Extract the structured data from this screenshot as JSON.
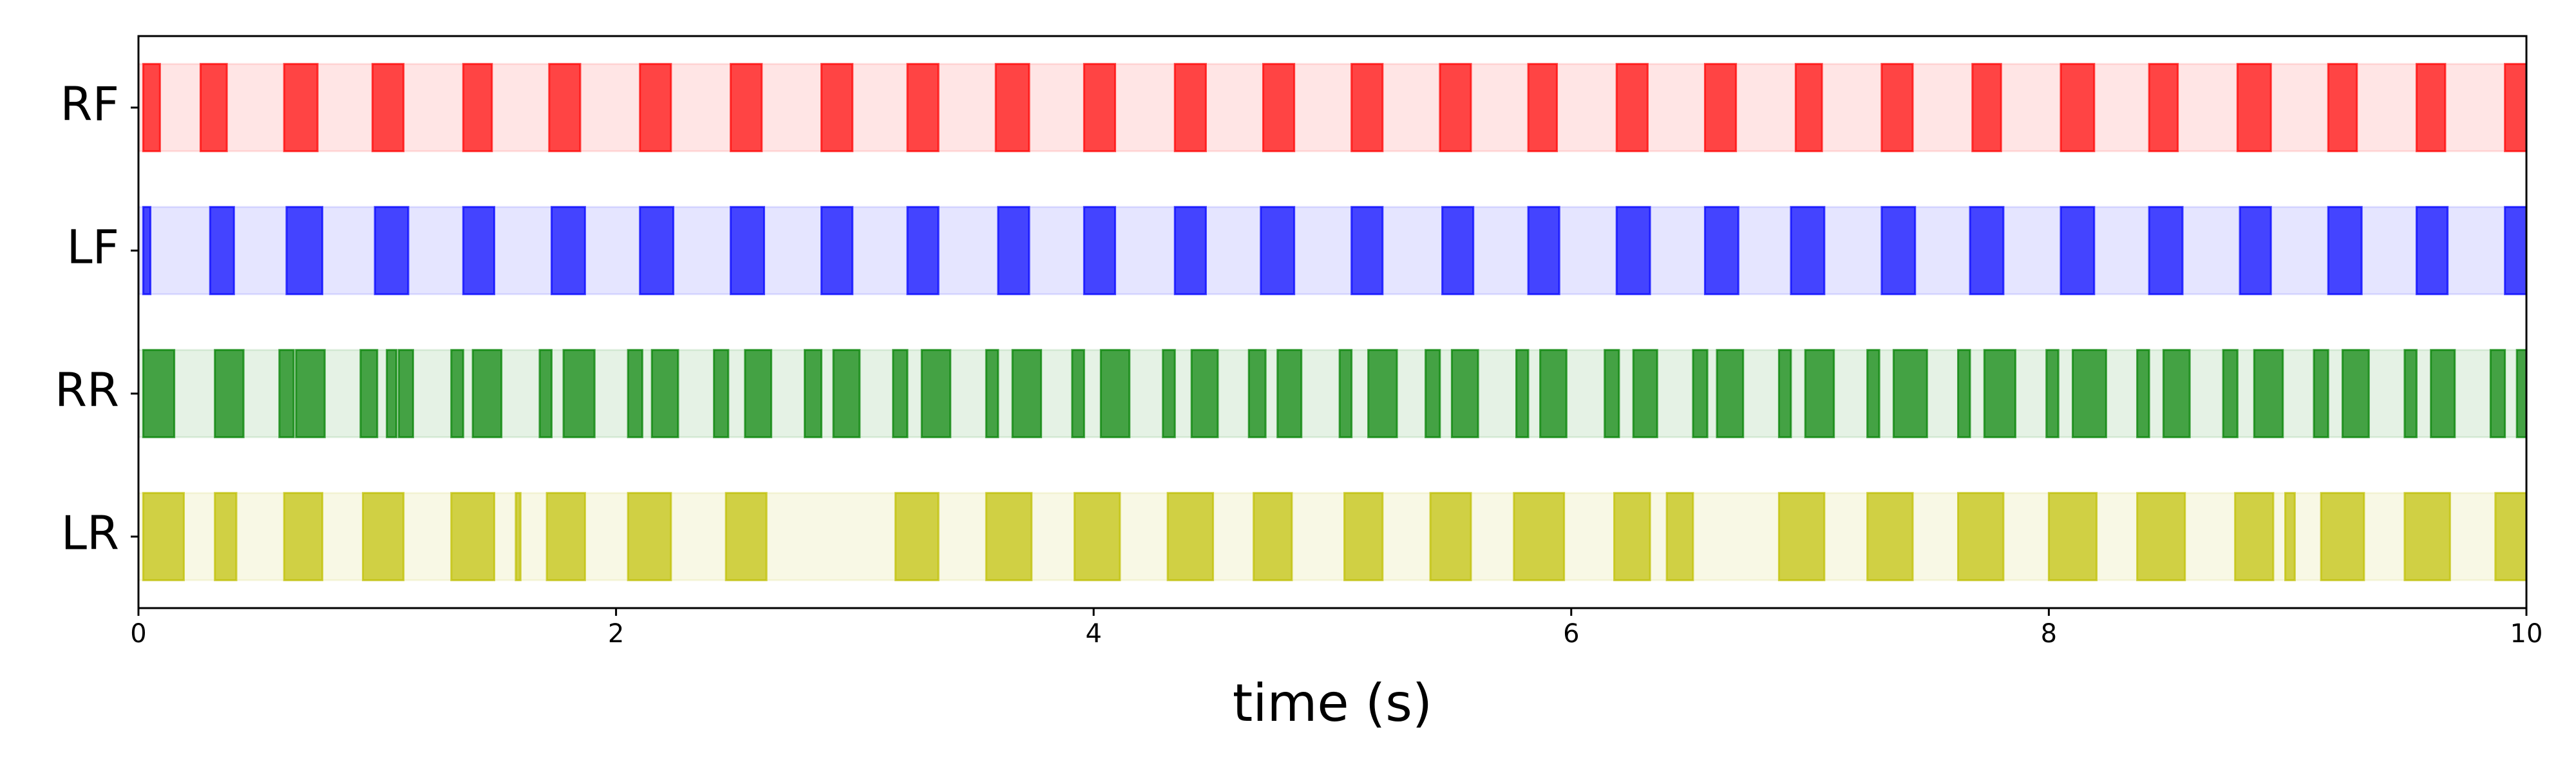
{
  "chart_data": {
    "type": "broken_barh",
    "xlabel": "time (s)",
    "xlim": [
      0,
      10
    ],
    "xticks": [
      0,
      2,
      4,
      6,
      8,
      10
    ],
    "series": [
      {
        "name": "RF",
        "color": "#ff0000",
        "intervals": [
          [
            0.02,
            0.09
          ],
          [
            0.26,
            0.37
          ],
          [
            0.61,
            0.75
          ],
          [
            0.98,
            1.11
          ],
          [
            1.36,
            1.48
          ],
          [
            1.72,
            1.85
          ],
          [
            2.1,
            2.23
          ],
          [
            2.48,
            2.61
          ],
          [
            2.86,
            2.99
          ],
          [
            3.22,
            3.35
          ],
          [
            3.59,
            3.73
          ],
          [
            3.96,
            4.09
          ],
          [
            4.34,
            4.47
          ],
          [
            4.71,
            4.84
          ],
          [
            5.08,
            5.21
          ],
          [
            5.45,
            5.58
          ],
          [
            5.82,
            5.94
          ],
          [
            6.19,
            6.32
          ],
          [
            6.56,
            6.69
          ],
          [
            6.94,
            7.05
          ],
          [
            7.3,
            7.43
          ],
          [
            7.68,
            7.8
          ],
          [
            8.05,
            8.19
          ],
          [
            8.42,
            8.54
          ],
          [
            8.79,
            8.93
          ],
          [
            9.17,
            9.29
          ],
          [
            9.54,
            9.66
          ],
          [
            9.91,
            10.0
          ]
        ]
      },
      {
        "name": "LF",
        "color": "#0000ff",
        "intervals": [
          [
            0.02,
            0.05
          ],
          [
            0.3,
            0.4
          ],
          [
            0.62,
            0.77
          ],
          [
            0.99,
            1.13
          ],
          [
            1.36,
            1.49
          ],
          [
            1.73,
            1.87
          ],
          [
            2.1,
            2.24
          ],
          [
            2.48,
            2.62
          ],
          [
            2.86,
            2.99
          ],
          [
            3.22,
            3.35
          ],
          [
            3.6,
            3.73
          ],
          [
            3.96,
            4.09
          ],
          [
            4.34,
            4.47
          ],
          [
            4.7,
            4.84
          ],
          [
            5.08,
            5.21
          ],
          [
            5.46,
            5.59
          ],
          [
            5.82,
            5.95
          ],
          [
            6.19,
            6.33
          ],
          [
            6.56,
            6.7
          ],
          [
            6.92,
            7.06
          ],
          [
            7.3,
            7.44
          ],
          [
            7.67,
            7.81
          ],
          [
            8.05,
            8.19
          ],
          [
            8.42,
            8.56
          ],
          [
            8.8,
            8.93
          ],
          [
            9.17,
            9.31
          ],
          [
            9.54,
            9.67
          ],
          [
            9.91,
            10.0
          ]
        ]
      },
      {
        "name": "RR",
        "color": "#008000",
        "intervals": [
          [
            0.02,
            0.15
          ],
          [
            0.32,
            0.44
          ],
          [
            0.59,
            0.65
          ],
          [
            0.66,
            0.78
          ],
          [
            0.93,
            1.0
          ],
          [
            1.04,
            1.08
          ],
          [
            1.09,
            1.15
          ],
          [
            1.31,
            1.36
          ],
          [
            1.4,
            1.52
          ],
          [
            1.68,
            1.73
          ],
          [
            1.78,
            1.91
          ],
          [
            2.05,
            2.11
          ],
          [
            2.15,
            2.26
          ],
          [
            2.41,
            2.47
          ],
          [
            2.54,
            2.65
          ],
          [
            2.79,
            2.86
          ],
          [
            2.91,
            3.02
          ],
          [
            3.16,
            3.22
          ],
          [
            3.28,
            3.4
          ],
          [
            3.55,
            3.6
          ],
          [
            3.66,
            3.78
          ],
          [
            3.91,
            3.96
          ],
          [
            4.03,
            4.15
          ],
          [
            4.29,
            4.34
          ],
          [
            4.41,
            4.52
          ],
          [
            4.65,
            4.72
          ],
          [
            4.77,
            4.87
          ],
          [
            5.03,
            5.08
          ],
          [
            5.15,
            5.27
          ],
          [
            5.39,
            5.45
          ],
          [
            5.5,
            5.61
          ],
          [
            5.77,
            5.82
          ],
          [
            5.87,
            5.98
          ],
          [
            6.14,
            6.2
          ],
          [
            6.26,
            6.36
          ],
          [
            6.51,
            6.57
          ],
          [
            6.61,
            6.72
          ],
          [
            6.87,
            6.92
          ],
          [
            6.98,
            7.1
          ],
          [
            7.24,
            7.29
          ],
          [
            7.35,
            7.49
          ],
          [
            7.62,
            7.67
          ],
          [
            7.73,
            7.86
          ],
          [
            7.99,
            8.04
          ],
          [
            8.1,
            8.24
          ],
          [
            8.37,
            8.42
          ],
          [
            8.48,
            8.59
          ],
          [
            8.73,
            8.79
          ],
          [
            8.86,
            8.98
          ],
          [
            9.11,
            9.17
          ],
          [
            9.23,
            9.34
          ],
          [
            9.49,
            9.54
          ],
          [
            9.6,
            9.7
          ],
          [
            9.85,
            9.91
          ],
          [
            9.96,
            10.0
          ]
        ]
      },
      {
        "name": "LR",
        "color": "#bfbf00",
        "intervals": [
          [
            0.02,
            0.19
          ],
          [
            0.32,
            0.41
          ],
          [
            0.61,
            0.77
          ],
          [
            0.94,
            1.11
          ],
          [
            1.31,
            1.49
          ],
          [
            1.58,
            1.6
          ],
          [
            1.71,
            1.87
          ],
          [
            2.05,
            2.23
          ],
          [
            2.46,
            2.63
          ],
          [
            3.17,
            3.35
          ],
          [
            3.55,
            3.74
          ],
          [
            3.92,
            4.11
          ],
          [
            4.31,
            4.5
          ],
          [
            4.67,
            4.83
          ],
          [
            5.05,
            5.21
          ],
          [
            5.41,
            5.58
          ],
          [
            5.76,
            5.97
          ],
          [
            6.18,
            6.33
          ],
          [
            6.4,
            6.51
          ],
          [
            6.87,
            7.06
          ],
          [
            7.24,
            7.43
          ],
          [
            7.62,
            7.81
          ],
          [
            8.0,
            8.2
          ],
          [
            8.37,
            8.57
          ],
          [
            8.78,
            8.94
          ],
          [
            8.99,
            9.03
          ],
          [
            9.14,
            9.32
          ],
          [
            9.49,
            9.68
          ],
          [
            9.87,
            10.0
          ]
        ]
      }
    ]
  }
}
